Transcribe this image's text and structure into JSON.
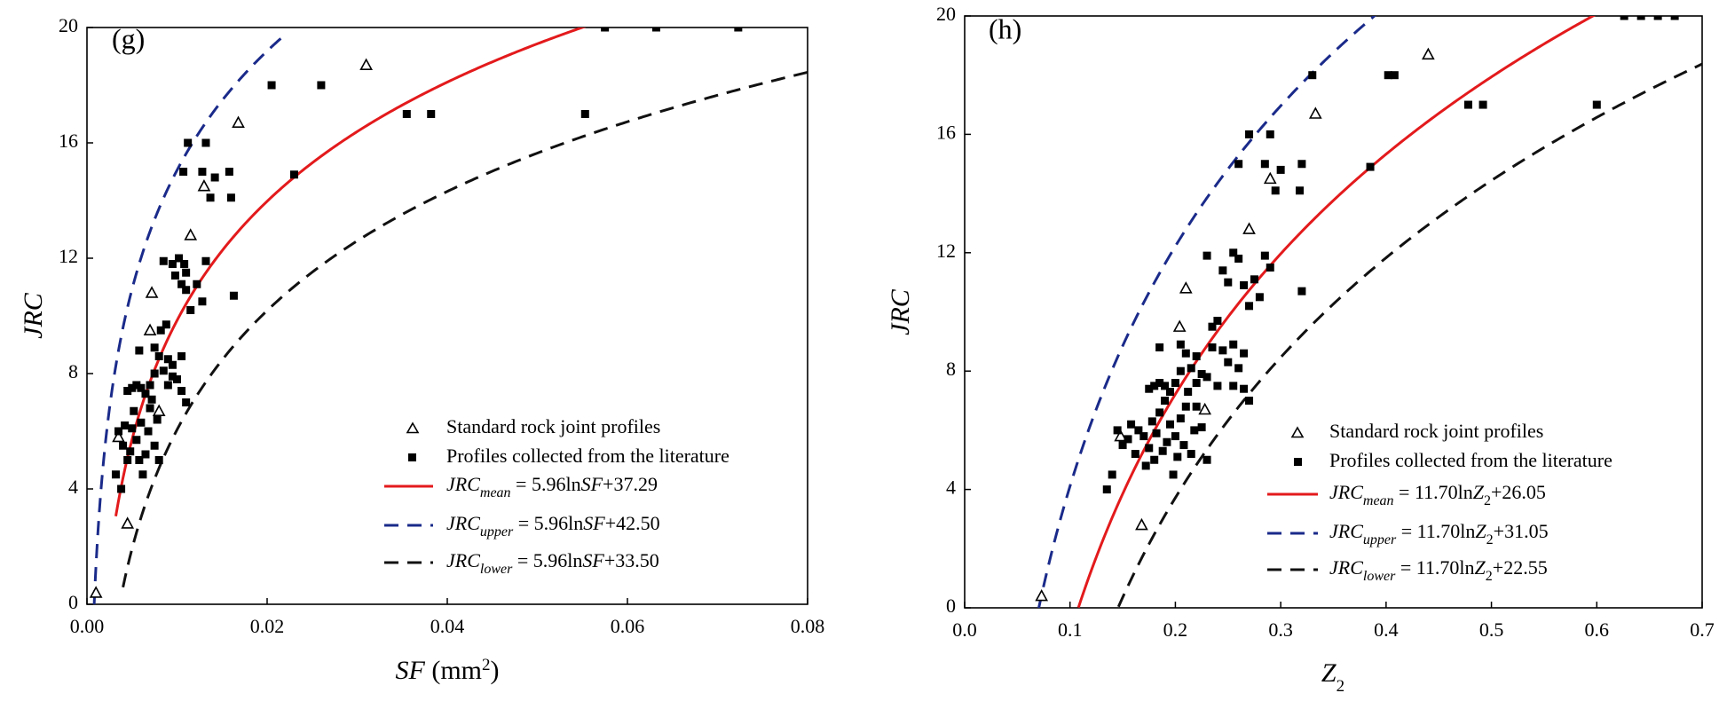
{
  "panels": [
    {
      "panel_label": "(g)",
      "xlabel_main": "SF",
      "xlabel_unit": " (mm",
      "xlabel_sup": "2",
      "xlabel_close": ")",
      "ylabel": "JRC",
      "legend": {
        "triangles": "Standard rock joint profiles",
        "squares": "Profiles collected from the literature",
        "mean": {
          "prefix": "JRC",
          "sub": "mean",
          "eq": " = 5.96ln",
          "var": "SF",
          "var_sub": "",
          "const": "+37.29"
        },
        "upper": {
          "prefix": "JRC",
          "sub": "upper",
          "eq": " = 5.96ln",
          "var": "SF",
          "var_sub": "",
          "const": "+42.50"
        },
        "lower": {
          "prefix": "JRC",
          "sub": "lower",
          "eq": " = 5.96ln",
          "var": "SF",
          "var_sub": "",
          "const": "+33.50"
        }
      }
    },
    {
      "panel_label": "(h)",
      "xlabel_main": "Z",
      "xlabel_sub": "2",
      "ylabel": "JRC",
      "legend": {
        "triangles": "Standard rock joint profiles",
        "squares": "Profiles collected from the literature",
        "mean": {
          "prefix": "JRC",
          "sub": "mean",
          "eq": " = 11.70ln",
          "var": "Z",
          "var_sub": "2",
          "const": "+26.05"
        },
        "upper": {
          "prefix": "JRC",
          "sub": "upper",
          "eq": " = 11.70ln",
          "var": "Z",
          "var_sub": "2",
          "const": "+31.05"
        },
        "lower": {
          "prefix": "JRC",
          "sub": "lower",
          "eq": " = 11.70ln",
          "var": "Z",
          "var_sub": "2",
          "const": "+22.55"
        }
      }
    }
  ],
  "colors": {
    "mean": "#e31a1c",
    "upper": "#1a2a8a",
    "lower": "#111111",
    "marker": "#000000"
  },
  "chart_data": [
    {
      "type": "scatter",
      "title": "(g)",
      "xlabel": "SF (mm2)",
      "ylabel": "JRC",
      "xlim": [
        0,
        0.08
      ],
      "ylim": [
        0,
        20
      ],
      "xticks": [
        0,
        0.02,
        0.04,
        0.06,
        0.08
      ],
      "xtick_labels": [
        "0.00",
        "0.02",
        "0.04",
        "0.06",
        "0.08"
      ],
      "yticks": [
        0,
        4,
        8,
        12,
        16,
        20
      ],
      "ytick_labels": [
        "0",
        "4",
        "8",
        "12",
        "16",
        "20"
      ],
      "legend_position": "bottom-right",
      "curves": [
        {
          "name": "mean",
          "a": 5.96,
          "b": 37.29,
          "x_from": 0.0032,
          "x_to": 0.08
        },
        {
          "name": "upper",
          "a": 5.96,
          "b": 42.5,
          "x_from": 0.0008,
          "x_to": 0.022
        },
        {
          "name": "lower",
          "a": 5.96,
          "b": 33.5,
          "x_from": 0.004,
          "x_to": 0.08
        }
      ],
      "series": [
        {
          "name": "Standard rock joint profiles",
          "marker": "triangle-open",
          "points": [
            [
              0.001,
              0.4
            ],
            [
              0.0045,
              2.8
            ],
            [
              0.0035,
              5.8
            ],
            [
              0.008,
              6.7
            ],
            [
              0.007,
              9.5
            ],
            [
              0.0072,
              10.8
            ],
            [
              0.0115,
              12.8
            ],
            [
              0.013,
              14.5
            ],
            [
              0.0168,
              16.7
            ],
            [
              0.031,
              18.7
            ]
          ]
        },
        {
          "name": "Profiles collected from the literature",
          "marker": "square-filled",
          "points": [
            [
              0.0032,
              4.5
            ],
            [
              0.0038,
              4.0
            ],
            [
              0.0035,
              6.0
            ],
            [
              0.004,
              5.5
            ],
            [
              0.0042,
              6.2
            ],
            [
              0.0045,
              5.0
            ],
            [
              0.0048,
              5.3
            ],
            [
              0.005,
              6.1
            ],
            [
              0.0052,
              6.7
            ],
            [
              0.0055,
              5.7
            ],
            [
              0.0058,
              5.0
            ],
            [
              0.006,
              6.3
            ],
            [
              0.0062,
              4.5
            ],
            [
              0.0065,
              5.2
            ],
            [
              0.0068,
              6.0
            ],
            [
              0.007,
              6.8
            ],
            [
              0.0072,
              7.1
            ],
            [
              0.0075,
              5.5
            ],
            [
              0.0078,
              6.4
            ],
            [
              0.008,
              5.0
            ],
            [
              0.0045,
              7.4
            ],
            [
              0.005,
              7.5
            ],
            [
              0.0055,
              7.6
            ],
            [
              0.006,
              7.5
            ],
            [
              0.0065,
              7.3
            ],
            [
              0.007,
              7.6
            ],
            [
              0.0075,
              8.0
            ],
            [
              0.0085,
              8.1
            ],
            [
              0.009,
              7.6
            ],
            [
              0.0095,
              7.9
            ],
            [
              0.01,
              7.8
            ],
            [
              0.0105,
              7.4
            ],
            [
              0.011,
              7.0
            ],
            [
              0.0058,
              8.8
            ],
            [
              0.0075,
              8.9
            ],
            [
              0.008,
              8.6
            ],
            [
              0.009,
              8.5
            ],
            [
              0.0095,
              8.3
            ],
            [
              0.0105,
              8.6
            ],
            [
              0.0082,
              9.5
            ],
            [
              0.0088,
              9.7
            ],
            [
              0.0085,
              11.9
            ],
            [
              0.0095,
              11.8
            ],
            [
              0.0098,
              11.4
            ],
            [
              0.0102,
              12.0
            ],
            [
              0.0108,
              11.8
            ],
            [
              0.011,
              11.5
            ],
            [
              0.0105,
              11.1
            ],
            [
              0.011,
              10.9
            ],
            [
              0.0115,
              10.2
            ],
            [
              0.0122,
              11.1
            ],
            [
              0.0128,
              10.5
            ],
            [
              0.0132,
              11.9
            ],
            [
              0.0163,
              10.7
            ],
            [
              0.0112,
              16.0
            ],
            [
              0.0132,
              16.0
            ],
            [
              0.0107,
              15.0
            ],
            [
              0.0128,
              15.0
            ],
            [
              0.0142,
              14.8
            ],
            [
              0.0158,
              15.0
            ],
            [
              0.0137,
              14.1
            ],
            [
              0.016,
              14.1
            ],
            [
              0.023,
              14.9
            ],
            [
              0.0205,
              18.0
            ],
            [
              0.026,
              18.0
            ],
            [
              0.0355,
              17.0
            ],
            [
              0.0382,
              17.0
            ],
            [
              0.0553,
              17.0
            ],
            [
              0.0575,
              20.0
            ],
            [
              0.0632,
              20.0
            ],
            [
              0.0723,
              20.0
            ]
          ]
        }
      ]
    },
    {
      "type": "scatter",
      "title": "(h)",
      "xlabel": "Z2",
      "ylabel": "JRC",
      "xlim": [
        0,
        0.7
      ],
      "ylim": [
        0,
        20
      ],
      "xticks": [
        0,
        0.1,
        0.2,
        0.3,
        0.4,
        0.5,
        0.6,
        0.7
      ],
      "xtick_labels": [
        "0.0",
        "0.1",
        "0.2",
        "0.3",
        "0.4",
        "0.5",
        "0.6",
        "0.7"
      ],
      "yticks": [
        0,
        4,
        8,
        12,
        16,
        20
      ],
      "ytick_labels": [
        "0",
        "4",
        "8",
        "12",
        "16",
        "20"
      ],
      "legend_position": "bottom-right",
      "curves": [
        {
          "name": "mean",
          "a": 11.7,
          "b": 26.05,
          "x_from": 0.108,
          "x_to": 0.7
        },
        {
          "name": "upper",
          "a": 11.7,
          "b": 31.05,
          "x_from": 0.07,
          "x_to": 0.4
        },
        {
          "name": "lower",
          "a": 11.7,
          "b": 22.55,
          "x_from": 0.146,
          "x_to": 0.7
        }
      ],
      "series": [
        {
          "name": "Standard rock joint profiles",
          "marker": "triangle-open",
          "points": [
            [
              0.073,
              0.4
            ],
            [
              0.148,
              5.8
            ],
            [
              0.168,
              2.8
            ],
            [
              0.204,
              9.5
            ],
            [
              0.21,
              10.8
            ],
            [
              0.228,
              6.7
            ],
            [
              0.27,
              12.8
            ],
            [
              0.29,
              14.5
            ],
            [
              0.333,
              16.7
            ],
            [
              0.44,
              18.7
            ]
          ]
        },
        {
          "name": "Profiles collected from the literature",
          "marker": "square-filled",
          "points": [
            [
              0.135,
              4.0
            ],
            [
              0.14,
              4.5
            ],
            [
              0.145,
              6.0
            ],
            [
              0.15,
              5.5
            ],
            [
              0.155,
              5.7
            ],
            [
              0.158,
              6.2
            ],
            [
              0.162,
              5.2
            ],
            [
              0.165,
              6.0
            ],
            [
              0.17,
              5.8
            ],
            [
              0.172,
              4.8
            ],
            [
              0.175,
              5.4
            ],
            [
              0.178,
              6.3
            ],
            [
              0.18,
              5.0
            ],
            [
              0.182,
              5.9
            ],
            [
              0.185,
              6.6
            ],
            [
              0.188,
              5.3
            ],
            [
              0.19,
              7.0
            ],
            [
              0.192,
              5.6
            ],
            [
              0.195,
              6.2
            ],
            [
              0.198,
              4.5
            ],
            [
              0.2,
              5.8
            ],
            [
              0.202,
              5.1
            ],
            [
              0.205,
              6.4
            ],
            [
              0.208,
              5.5
            ],
            [
              0.21,
              6.8
            ],
            [
              0.212,
              7.3
            ],
            [
              0.215,
              5.2
            ],
            [
              0.218,
              6.0
            ],
            [
              0.22,
              6.8
            ],
            [
              0.225,
              6.1
            ],
            [
              0.23,
              5.0
            ],
            [
              0.175,
              7.4
            ],
            [
              0.18,
              7.5
            ],
            [
              0.185,
              7.6
            ],
            [
              0.19,
              7.5
            ],
            [
              0.195,
              7.3
            ],
            [
              0.2,
              7.6
            ],
            [
              0.205,
              8.0
            ],
            [
              0.215,
              8.1
            ],
            [
              0.22,
              7.6
            ],
            [
              0.225,
              7.9
            ],
            [
              0.23,
              7.8
            ],
            [
              0.24,
              7.5
            ],
            [
              0.25,
              8.3
            ],
            [
              0.255,
              7.5
            ],
            [
              0.26,
              8.1
            ],
            [
              0.265,
              7.4
            ],
            [
              0.27,
              7.0
            ],
            [
              0.185,
              8.8
            ],
            [
              0.205,
              8.9
            ],
            [
              0.21,
              8.6
            ],
            [
              0.22,
              8.5
            ],
            [
              0.235,
              8.8
            ],
            [
              0.245,
              8.7
            ],
            [
              0.255,
              8.9
            ],
            [
              0.265,
              8.6
            ],
            [
              0.235,
              9.5
            ],
            [
              0.24,
              9.7
            ],
            [
              0.23,
              11.9
            ],
            [
              0.245,
              11.4
            ],
            [
              0.25,
              11.0
            ],
            [
              0.255,
              12.0
            ],
            [
              0.26,
              11.8
            ],
            [
              0.265,
              10.9
            ],
            [
              0.27,
              10.2
            ],
            [
              0.275,
              11.1
            ],
            [
              0.28,
              10.5
            ],
            [
              0.285,
              11.9
            ],
            [
              0.29,
              11.5
            ],
            [
              0.32,
              10.7
            ],
            [
              0.27,
              16.0
            ],
            [
              0.29,
              16.0
            ],
            [
              0.26,
              15.0
            ],
            [
              0.285,
              15.0
            ],
            [
              0.3,
              14.8
            ],
            [
              0.32,
              15.0
            ],
            [
              0.295,
              14.1
            ],
            [
              0.318,
              14.1
            ],
            [
              0.385,
              14.9
            ],
            [
              0.33,
              18.0
            ],
            [
              0.402,
              18.0
            ],
            [
              0.408,
              18.0
            ],
            [
              0.478,
              17.0
            ],
            [
              0.492,
              17.0
            ],
            [
              0.6,
              17.0
            ],
            [
              0.626,
              20.0
            ],
            [
              0.642,
              20.0
            ],
            [
              0.658,
              20.0
            ],
            [
              0.674,
              20.0
            ]
          ]
        }
      ]
    }
  ]
}
